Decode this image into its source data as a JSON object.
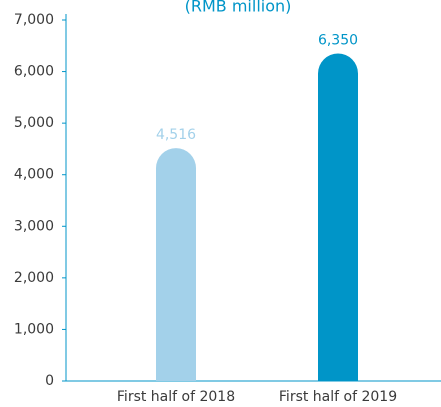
{
  "chart_data": {
    "type": "bar",
    "title": "(RMB million)",
    "categories": [
      "First half of 2018",
      "First half of 2019"
    ],
    "values": [
      4516,
      6350
    ],
    "value_labels": [
      "4,516",
      "6,350"
    ],
    "colors": [
      "#a3d1ea",
      "#0095c8"
    ],
    "ylim": [
      0,
      7000
    ],
    "yticks": [
      0,
      {
        "value": 1000,
        "label": "1,000"
      },
      {
        "value": 2000,
        "label": "2,000"
      },
      {
        "value": 3000,
        "label": "3,000"
      },
      {
        "value": 4000,
        "label": "4,000"
      },
      {
        "value": 5000,
        "label": "5,000"
      },
      {
        "value": 6000,
        "label": "6,000"
      },
      {
        "value": 7000,
        "label": "7,000"
      }
    ],
    "grid": false
  }
}
